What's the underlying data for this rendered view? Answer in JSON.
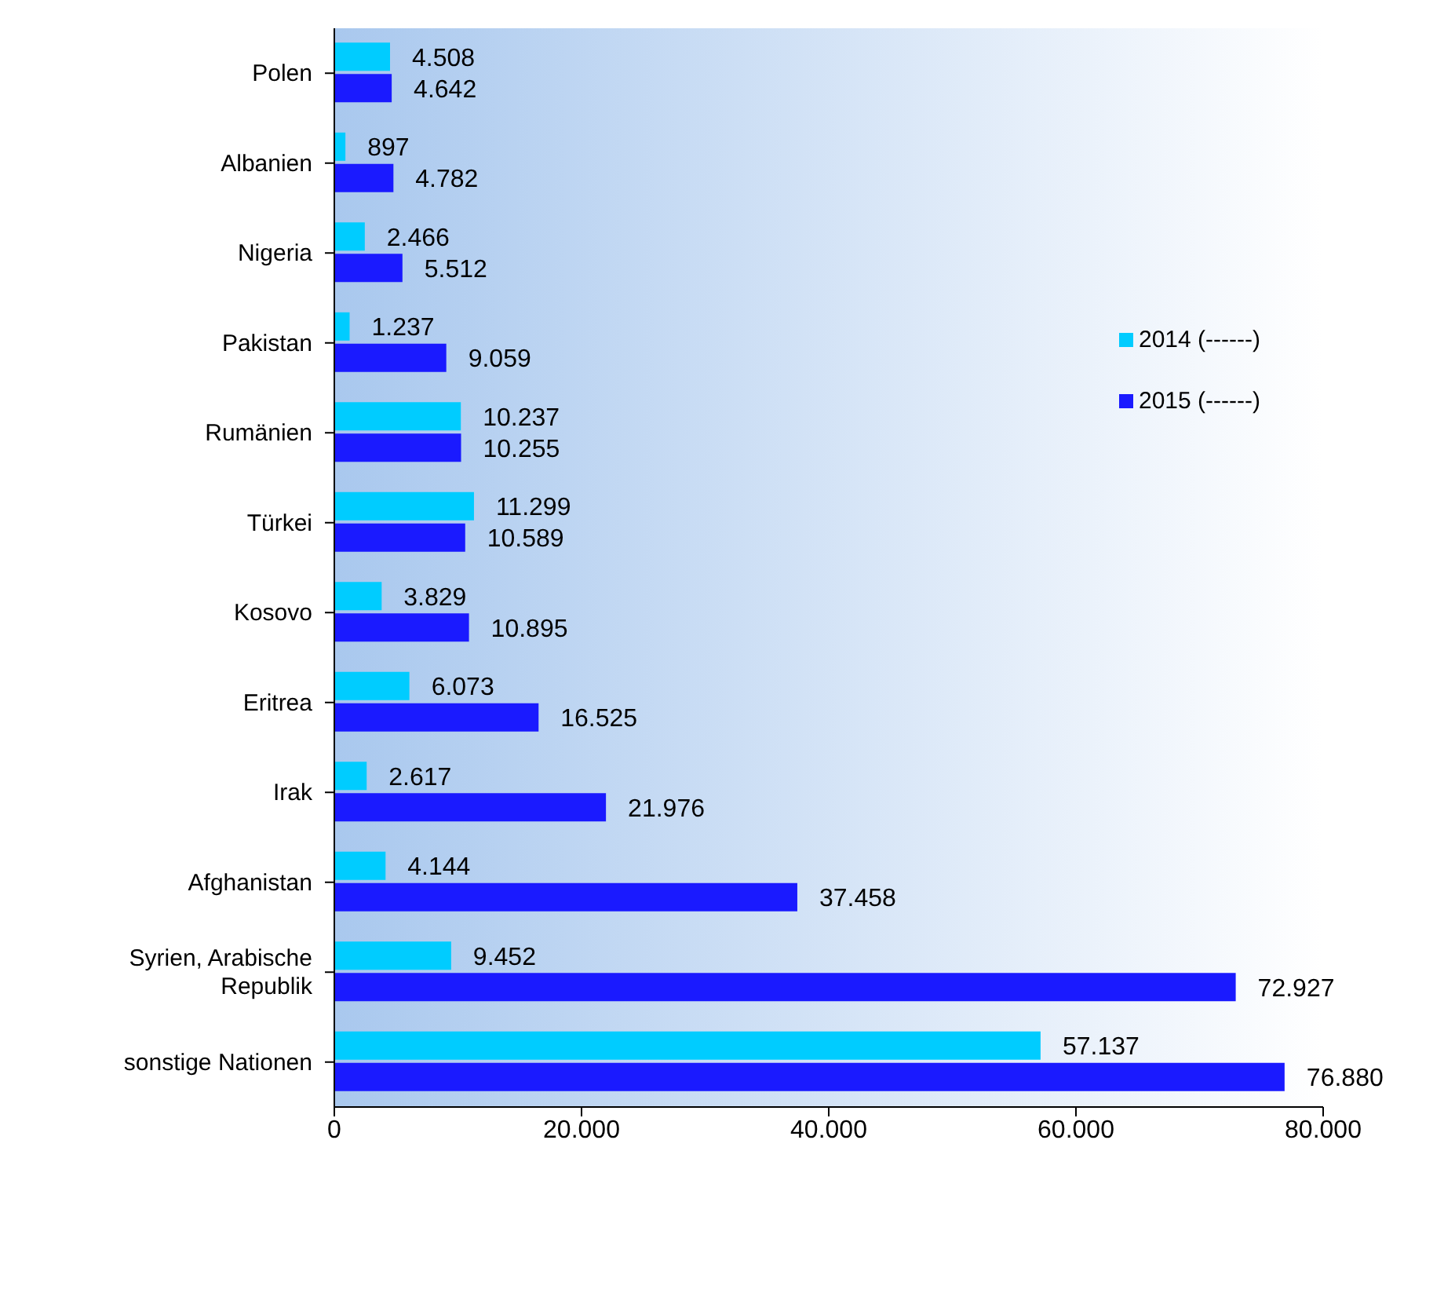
{
  "chart_data": {
    "type": "bar",
    "orientation": "horizontal",
    "categories": [
      "Polen",
      "Albanien",
      "Nigeria",
      "Pakistan",
      "Rumänien",
      "Türkei",
      "Kosovo",
      "Eritrea",
      "Irak",
      "Afghanistan",
      "Syrien, Arabische Republik",
      "sonstige Nationen"
    ],
    "series": [
      {
        "name": "2014 (------)",
        "color": "#00ccff",
        "values": [
          4508,
          897,
          2466,
          1237,
          10237,
          11299,
          3829,
          6073,
          2617,
          4144,
          9452,
          57137
        ],
        "value_labels": [
          "4.508",
          "897",
          "2.466",
          "1.237",
          "10.237",
          "11.299",
          "3.829",
          "6.073",
          "2.617",
          "4.144",
          "9.452",
          "57.137"
        ]
      },
      {
        "name": "2015 (------)",
        "color": "#1a1aff",
        "values": [
          4642,
          4782,
          5512,
          9059,
          10255,
          10589,
          10895,
          16525,
          21976,
          37458,
          72927,
          76880
        ],
        "value_labels": [
          "4.642",
          "4.782",
          "5.512",
          "9.059",
          "10.255",
          "10.589",
          "10.895",
          "16.525",
          "21.976",
          "37.458",
          "72.927",
          "76.880"
        ]
      }
    ],
    "xlim": [
      0,
      80000
    ],
    "xticks": [
      0,
      {
        "value": 20000,
        "label": "20.000"
      },
      {
        "value": 40000,
        "label": "40.000"
      },
      {
        "value": 60000,
        "label": "60.000"
      },
      {
        "value": 80000,
        "label": "80.000"
      }
    ],
    "legend": "right",
    "grid": false
  }
}
